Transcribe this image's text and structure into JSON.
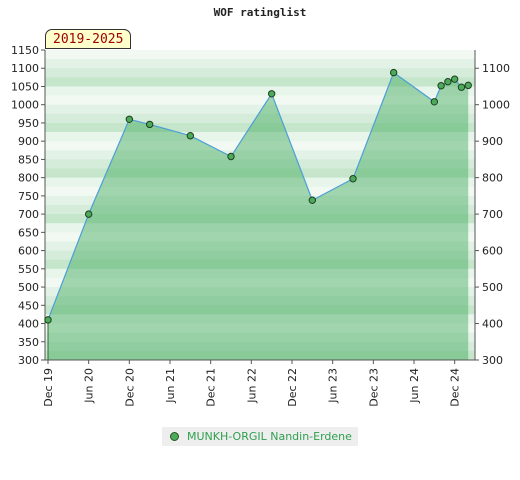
{
  "chart_data": {
    "type": "area",
    "title": "WOF ratinglist",
    "badge": "2019-2025",
    "ylim": [
      300,
      1150
    ],
    "y_ticks_left": [
      300,
      350,
      400,
      450,
      500,
      550,
      600,
      650,
      700,
      750,
      800,
      850,
      900,
      950,
      1000,
      1050,
      1100,
      1150
    ],
    "y_ticks_right": [
      300,
      400,
      500,
      600,
      700,
      800,
      900,
      1000,
      1100
    ],
    "x_ticks": [
      "Dec 19",
      "Jun 20",
      "Dec 20",
      "Jun 21",
      "Dec 21",
      "Jun 22",
      "Dec 22",
      "Jun 23",
      "Dec 23",
      "Jun 24",
      "Dec 24"
    ],
    "grid": true,
    "legend_position": "bottom",
    "series": [
      {
        "name": "MUNKH-ORGIL Nandin-Erdene",
        "color": "#4c9fd6",
        "marker_color": "#4cab5b",
        "fill_color": "#3ea85a",
        "points": [
          {
            "x": "2019-12",
            "y": 410
          },
          {
            "x": "2020-06",
            "y": 700
          },
          {
            "x": "2020-12",
            "y": 960
          },
          {
            "x": "2021-03",
            "y": 946
          },
          {
            "x": "2021-09",
            "y": 915
          },
          {
            "x": "2022-03",
            "y": 858
          },
          {
            "x": "2022-09",
            "y": 1030
          },
          {
            "x": "2023-03",
            "y": 738
          },
          {
            "x": "2023-09",
            "y": 797
          },
          {
            "x": "2024-03",
            "y": 1088
          },
          {
            "x": "2024-09",
            "y": 1008
          },
          {
            "x": "2024-10",
            "y": 1052
          },
          {
            "x": "2024-11",
            "y": 1063
          },
          {
            "x": "2024-12",
            "y": 1070
          },
          {
            "x": "2025-01",
            "y": 1048
          },
          {
            "x": "2025-02",
            "y": 1053
          }
        ]
      }
    ]
  }
}
